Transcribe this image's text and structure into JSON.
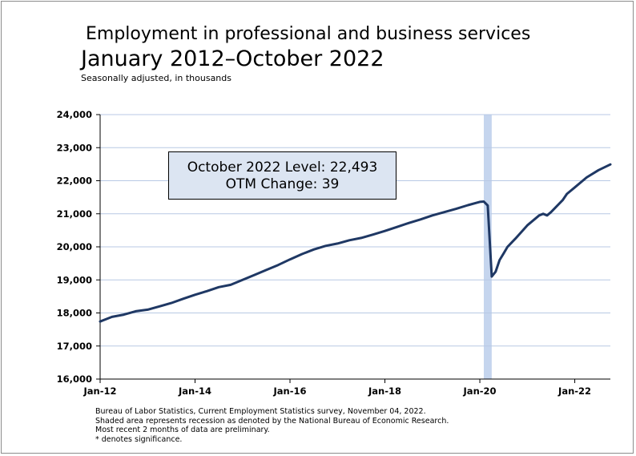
{
  "title_line1": "Employment in professional and business services",
  "title_line2": "January 2012–October 2022",
  "subtitle": "Seasonally adjusted, in thousands",
  "callout": {
    "level_text": "October 2022 Level: 22,493",
    "change_text": "OTM Change: 39"
  },
  "notes": [
    "Bureau of Labor Statistics, Current Employment Statistics survey, November 04, 2022.",
    "Shaded area represents recession as denoted by the National Bureau of Economic Research.",
    "Most recent 2 months of data are preliminary.",
    "* denotes significance."
  ],
  "colors": {
    "line": "#1f3864",
    "recession": "#c5d5ee",
    "grid": "#b8c9e4",
    "callout_bg": "#dce5f2"
  },
  "chart_data": {
    "type": "line",
    "x_tick_labels": [
      "Jan-12",
      "Jan-14",
      "Jan-16",
      "Jan-18",
      "Jan-20",
      "Jan-22"
    ],
    "y_tick_labels": [
      "16,000",
      "17,000",
      "18,000",
      "19,000",
      "20,000",
      "21,000",
      "22,000",
      "23,000",
      "24,000"
    ],
    "ylim": [
      16000,
      24000
    ],
    "xlim": [
      "2012-01",
      "2022-10"
    ],
    "grid": true,
    "recession": {
      "start": "2020-02",
      "end": "2020-04"
    },
    "series": [
      {
        "points": [
          [
            "2012-01",
            17740
          ],
          [
            "2012-04",
            17880
          ],
          [
            "2012-07",
            17950
          ],
          [
            "2012-10",
            18050
          ],
          [
            "2013-01",
            18100
          ],
          [
            "2013-04",
            18200
          ],
          [
            "2013-07",
            18300
          ],
          [
            "2013-10",
            18430
          ],
          [
            "2014-01",
            18550
          ],
          [
            "2014-04",
            18660
          ],
          [
            "2014-07",
            18780
          ],
          [
            "2014-10",
            18850
          ],
          [
            "2015-01",
            19000
          ],
          [
            "2015-04",
            19150
          ],
          [
            "2015-07",
            19300
          ],
          [
            "2015-10",
            19450
          ],
          [
            "2016-01",
            19620
          ],
          [
            "2016-04",
            19780
          ],
          [
            "2016-07",
            19920
          ],
          [
            "2016-10",
            20030
          ],
          [
            "2017-01",
            20100
          ],
          [
            "2017-04",
            20200
          ],
          [
            "2017-07",
            20270
          ],
          [
            "2017-10",
            20370
          ],
          [
            "2018-01",
            20480
          ],
          [
            "2018-04",
            20600
          ],
          [
            "2018-07",
            20720
          ],
          [
            "2018-10",
            20830
          ],
          [
            "2019-01",
            20950
          ],
          [
            "2019-04",
            21050
          ],
          [
            "2019-07",
            21150
          ],
          [
            "2019-10",
            21260
          ],
          [
            "2020-01",
            21360
          ],
          [
            "2020-02",
            21370
          ],
          [
            "2020-03",
            21250
          ],
          [
            "2020-04",
            19100
          ],
          [
            "2020-05",
            19250
          ],
          [
            "2020-06",
            19600
          ],
          [
            "2020-07",
            19800
          ],
          [
            "2020-08",
            20000
          ],
          [
            "2020-10",
            20250
          ],
          [
            "2021-01",
            20650
          ],
          [
            "2021-04",
            20950
          ],
          [
            "2021-05",
            21000
          ],
          [
            "2021-06",
            20950
          ],
          [
            "2021-07",
            21050
          ],
          [
            "2021-10",
            21420
          ],
          [
            "2021-11",
            21600
          ],
          [
            "2022-01",
            21800
          ],
          [
            "2022-04",
            22100
          ],
          [
            "2022-07",
            22320
          ],
          [
            "2022-10",
            22493
          ]
        ]
      }
    ]
  }
}
